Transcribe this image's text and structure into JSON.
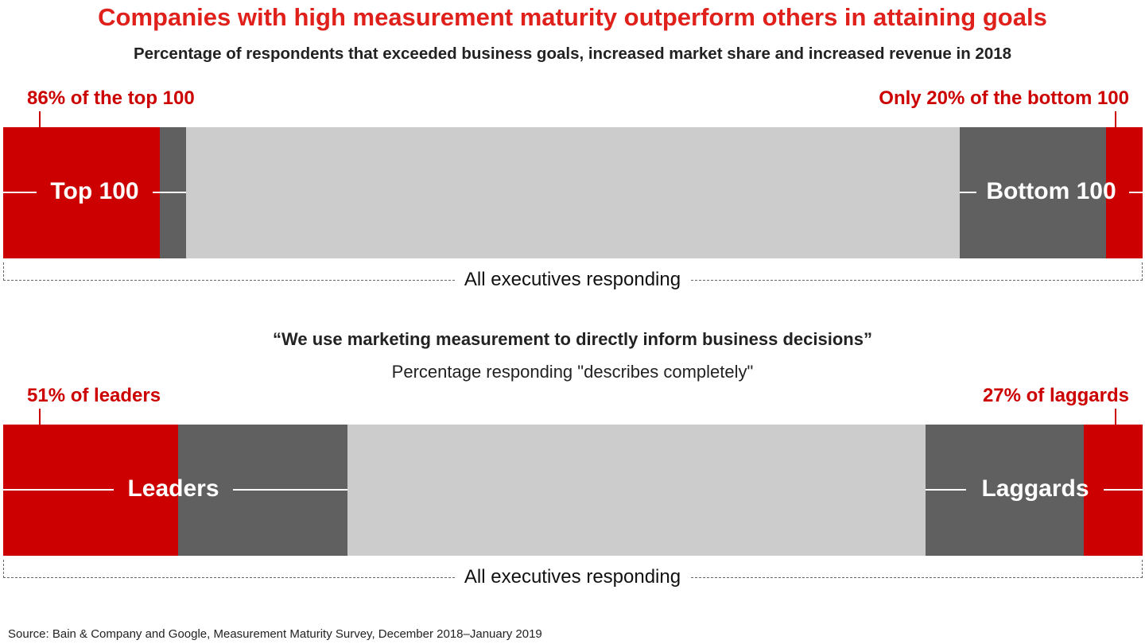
{
  "title": "Companies with high measurement maturity outperform others in attaining goals",
  "subtitle": "Percentage of respondents that exceeded business goals, increased market share and increased revenue in 2018",
  "colors": {
    "accent": "#cc0000",
    "title": "#e0201b",
    "dark": "#606060",
    "light": "#cccccc"
  },
  "chart_data": [
    {
      "type": "bar",
      "categories": [
        "Top 100",
        "Bottom 100"
      ],
      "values": [
        86,
        20
      ],
      "annotations": [
        "86% of the top 100",
        "Only 20% of the bottom 100"
      ],
      "bracket_label": "All executives responding"
    },
    {
      "type": "bar",
      "title": "“We use marketing measurement to directly inform business decisions”",
      "subtitle": "Percentage responding \"describes completely\"",
      "categories": [
        "Leaders",
        "Laggards"
      ],
      "values": [
        51,
        27
      ],
      "annotations": [
        "51% of leaders",
        "27% of laggards"
      ],
      "bracket_label": "All executives responding"
    }
  ],
  "source": "Source: Bain & Company and Google, Measurement Maturity Survey, December 2018–January 2019"
}
